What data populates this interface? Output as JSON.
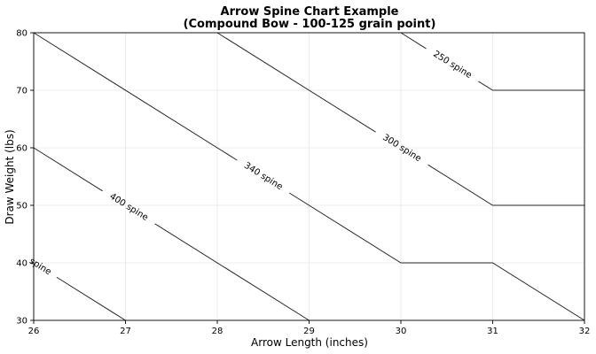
{
  "chart_data": {
    "type": "line",
    "title_line1": "Arrow Spine Chart Example",
    "title_line2": "(Compound Bow - 100-125 grain point)",
    "xlabel": "Arrow Length (inches)",
    "ylabel": "Draw Weight (lbs)",
    "xlim": [
      26,
      32
    ],
    "ylim": [
      30,
      80
    ],
    "x_ticks": [
      26,
      27,
      28,
      29,
      30,
      31,
      32
    ],
    "y_ticks": [
      30,
      40,
      50,
      60,
      70,
      80
    ],
    "grid": true,
    "series": [
      {
        "name": "250 spine",
        "points": [
          [
            30,
            80
          ],
          [
            31,
            70
          ],
          [
            32,
            70
          ]
        ]
      },
      {
        "name": "300 spine",
        "points": [
          [
            28,
            80
          ],
          [
            31,
            50
          ],
          [
            32,
            50
          ]
        ]
      },
      {
        "name": "340 spine",
        "points": [
          [
            26,
            80
          ],
          [
            30,
            40
          ],
          [
            31,
            40
          ],
          [
            32,
            30
          ]
        ]
      },
      {
        "name": "400 spine",
        "points": [
          [
            26,
            60
          ],
          [
            29,
            30
          ]
        ]
      },
      {
        "name": "spine",
        "points": [
          [
            26,
            40
          ],
          [
            27,
            30
          ]
        ]
      }
    ]
  }
}
